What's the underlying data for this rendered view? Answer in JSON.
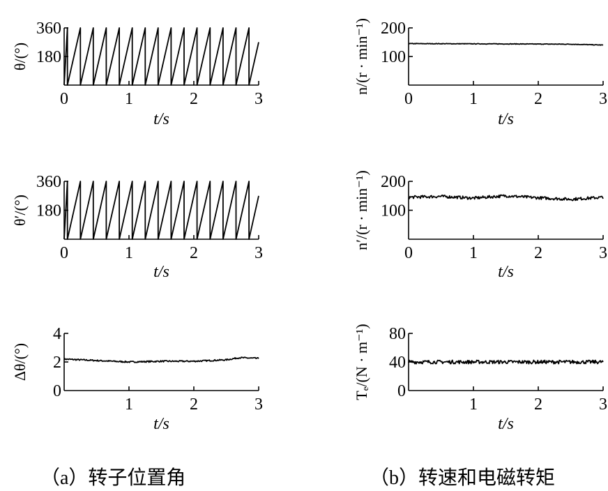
{
  "chart_data": [
    {
      "id": "theta",
      "type": "line",
      "column": "a",
      "ylabel": "θ/(°)",
      "xlabel": "t/s",
      "xlim": [
        0,
        3
      ],
      "ylim": [
        0,
        360
      ],
      "xticks": [
        0,
        1,
        2,
        3
      ],
      "yticks": [
        180,
        360
      ],
      "ytick_labels": [
        "180",
        "360"
      ],
      "xtick_labels": [
        "0",
        "1",
        "2",
        "3"
      ],
      "series": [
        {
          "shape": "sawtooth",
          "min": 0,
          "max": 360,
          "period_s": 0.2,
          "phase_s": 0.05
        }
      ]
    },
    {
      "id": "theta-est",
      "type": "line",
      "column": "a",
      "ylabel": "θ′/(°)",
      "xlabel": "t/s",
      "xlim": [
        0,
        3
      ],
      "ylim": [
        0,
        360
      ],
      "xticks": [
        0,
        1,
        2,
        3
      ],
      "yticks": [
        180,
        360
      ],
      "ytick_labels": [
        "180",
        "360"
      ],
      "xtick_labels": [
        "0",
        "1",
        "2",
        "3"
      ],
      "series": [
        {
          "shape": "sawtooth",
          "min": 0,
          "max": 360,
          "period_s": 0.2,
          "phase_s": 0.05
        }
      ]
    },
    {
      "id": "delta-theta",
      "type": "line",
      "column": "a",
      "ylabel": "Δθ/(°)",
      "xlabel": "t/s",
      "xlim": [
        0,
        3
      ],
      "ylim": [
        0,
        4
      ],
      "xticks": [
        0,
        1,
        2,
        3
      ],
      "yticks": [
        0,
        2,
        4
      ],
      "ytick_labels": [
        "0",
        "2",
        "4"
      ],
      "xtick_labels": [
        "",
        "1",
        "2",
        "3"
      ],
      "series": [
        {
          "shape": "noisy",
          "x": [
            0,
            0.5,
            1.0,
            1.5,
            2.0,
            2.5,
            2.7,
            3.0
          ],
          "y": [
            2.2,
            2.1,
            2.0,
            2.05,
            2.05,
            2.15,
            2.3,
            2.25
          ],
          "noise": 0.05
        }
      ]
    },
    {
      "id": "speed",
      "type": "line",
      "column": "b",
      "ylabel": "n/(r · min⁻¹)",
      "xlabel": "t/s",
      "xlim": [
        0,
        3
      ],
      "ylim": [
        0,
        200
      ],
      "xticks": [
        0,
        1,
        2,
        3
      ],
      "yticks": [
        100,
        200
      ],
      "ytick_labels": [
        "100",
        "200"
      ],
      "xtick_labels": [
        "0",
        "1",
        "2",
        "3"
      ],
      "series": [
        {
          "shape": "noisy",
          "x": [
            0,
            1.5,
            2.5,
            3.0
          ],
          "y": [
            145,
            144,
            143,
            140
          ],
          "noise": 1
        }
      ]
    },
    {
      "id": "speed-est",
      "type": "line",
      "column": "b",
      "ylabel": "n′/(r · min⁻¹)",
      "xlabel": "t/s",
      "xlim": [
        0,
        3
      ],
      "ylim": [
        0,
        200
      ],
      "xticks": [
        0,
        1,
        2,
        3
      ],
      "yticks": [
        100,
        200
      ],
      "ytick_labels": [
        "100",
        "200"
      ],
      "xtick_labels": [
        "0",
        "1",
        "2",
        "3"
      ],
      "series": [
        {
          "shape": "noisy",
          "x": [
            0,
            0.5,
            1.0,
            1.5,
            2.0,
            2.5,
            3.0
          ],
          "y": [
            145,
            148,
            142,
            150,
            143,
            138,
            145
          ],
          "noise": 5
        }
      ]
    },
    {
      "id": "torque",
      "type": "line",
      "column": "b",
      "ylabel": "Tₑ/(N · m⁻¹)",
      "xlabel": "t/s",
      "xlim": [
        0,
        3
      ],
      "ylim": [
        0,
        80
      ],
      "xticks": [
        0,
        1,
        2,
        3
      ],
      "yticks": [
        0,
        40,
        80
      ],
      "ytick_labels": [
        "0",
        "40",
        "80"
      ],
      "xtick_labels": [
        "",
        "1",
        "2",
        "3"
      ],
      "series": [
        {
          "shape": "noisy",
          "x": [
            0,
            1.0,
            2.0,
            3.0
          ],
          "y": [
            40,
            40,
            40,
            40
          ],
          "noise": 2.5
        }
      ]
    }
  ],
  "captions": {
    "a": "（a）转子位置角",
    "b": "（b）转速和电磁转矩"
  }
}
